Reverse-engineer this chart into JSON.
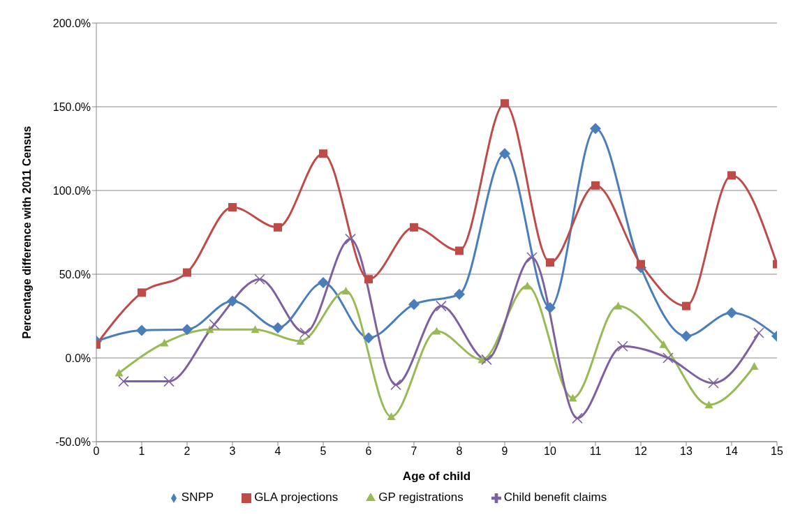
{
  "chart_data": {
    "type": "line",
    "xlabel": "Age of child",
    "ylabel": "Percentage difference with 2011 Census",
    "xlim": [
      0,
      15
    ],
    "xticks": [
      0,
      1,
      2,
      3,
      4,
      5,
      6,
      7,
      8,
      9,
      10,
      11,
      12,
      13,
      14,
      15
    ],
    "ylim": [
      -50,
      200
    ],
    "yticks": [
      {
        "value": -50,
        "label": "-50.0%"
      },
      {
        "value": 0,
        "label": "0.0%"
      },
      {
        "value": 50,
        "label": "50.0%"
      },
      {
        "value": 100,
        "label": "100.0%"
      },
      {
        "value": 150,
        "label": "150.0%"
      },
      {
        "value": 200,
        "label": "200.0%"
      }
    ],
    "grid": "y",
    "legend": "bottom",
    "line_style": "solid",
    "series": [
      {
        "name": "SNPP",
        "color": "#4a7ebb",
        "marker": "diamond",
        "x": [
          0,
          1,
          2,
          3,
          4,
          5,
          6,
          7,
          8,
          9,
          10,
          11,
          12,
          13,
          14,
          15
        ],
        "values": [
          10,
          16.5,
          17,
          34,
          18,
          45,
          12,
          32,
          38,
          122,
          30,
          137,
          54,
          13,
          27,
          13
        ]
      },
      {
        "name": "GLA projections",
        "color": "#be4b48",
        "marker": "square",
        "x": [
          0,
          1,
          2,
          3,
          4,
          5,
          6,
          7,
          8,
          9,
          10,
          11,
          12,
          13,
          14,
          15
        ],
        "values": [
          8,
          39,
          51,
          90,
          78,
          122,
          47,
          78,
          64,
          152,
          57,
          103,
          56,
          31,
          109,
          56
        ]
      },
      {
        "name": "GP registrations",
        "color": "#98b954",
        "marker": "triangle",
        "x": [
          0.5,
          1.5,
          2.5,
          3.5,
          4.5,
          5.5,
          6.5,
          7.5,
          8.5,
          9.5,
          10.5,
          11.5,
          12.5,
          13.5,
          14.5
        ],
        "values": [
          -9,
          9,
          17,
          17,
          10,
          40,
          -35,
          16,
          -1,
          43,
          -24,
          31,
          8,
          -28,
          -5
        ]
      },
      {
        "name": "Child benefit claims",
        "color": "#7d60a0",
        "marker": "cross",
        "x": [
          0.6,
          1.6,
          2.6,
          3.6,
          4.6,
          5.6,
          6.6,
          7.6,
          8.6,
          9.6,
          10.6,
          11.6,
          12.6,
          13.6,
          14.6
        ],
        "values": [
          -14,
          -14,
          20,
          47,
          15,
          71,
          -16,
          31,
          -1,
          60,
          -36,
          7,
          0,
          -15,
          15
        ]
      }
    ]
  }
}
